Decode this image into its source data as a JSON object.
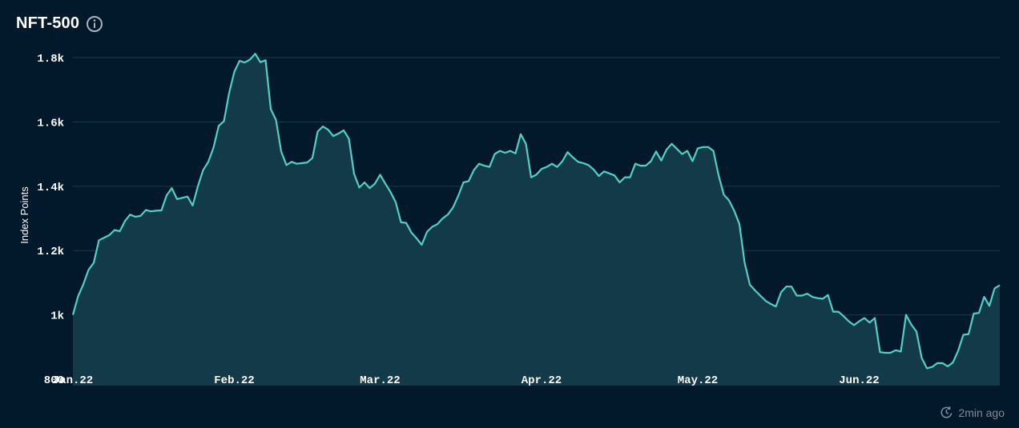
{
  "header": {
    "title": "NFT-500",
    "info_icon": "info-icon"
  },
  "footer": {
    "updated": "2min ago",
    "refresh_icon": "clock-refresh-icon"
  },
  "colors": {
    "background": "#02192b",
    "line": "#4fd1c5",
    "area": "#143c4a",
    "grid": "#1a3a4d",
    "text": "#ffffff"
  },
  "chart_data": {
    "type": "area",
    "title": "NFT-500",
    "ylabel": "Index Points",
    "xlabel": "",
    "ylim": [
      780,
      1830
    ],
    "y_ticks": [
      800,
      1000,
      1200,
      1400,
      1600,
      1800
    ],
    "y_tick_labels": [
      "800",
      "1k",
      "1.2k",
      "1.4k",
      "1.6k",
      "1.8k"
    ],
    "x_tick_labels": [
      "Jan.22",
      "Feb.22",
      "Mar.22",
      "Apr.22",
      "May.22",
      "Jun.22"
    ],
    "x_tick_days": [
      0,
      31,
      59,
      90,
      120,
      151
    ],
    "x_range_days": [
      0,
      178
    ],
    "grid": true,
    "series": [
      {
        "x": [
          0,
          1,
          2,
          3,
          4,
          5,
          6,
          7,
          8,
          9,
          10,
          11,
          12,
          13,
          14,
          15,
          16,
          17,
          18,
          19,
          20,
          21,
          22,
          23,
          24,
          25,
          26,
          27,
          28,
          29,
          30,
          31,
          32,
          33,
          34,
          35,
          36,
          37,
          38,
          39,
          40,
          41,
          42,
          43,
          44,
          45,
          46,
          47,
          48,
          49,
          50,
          51,
          52,
          53,
          54,
          55,
          56,
          57,
          58,
          59,
          60,
          61,
          62,
          63,
          64,
          65,
          66,
          67,
          68,
          69,
          70,
          71,
          72,
          73,
          74,
          75,
          76,
          77,
          78,
          79,
          80,
          81,
          82,
          83,
          84,
          85,
          86,
          87,
          88,
          89,
          90,
          91,
          92,
          93,
          94,
          95,
          96,
          97,
          98,
          99,
          100,
          101,
          102,
          103,
          104,
          105,
          106,
          107,
          108,
          109,
          110,
          111,
          112,
          113,
          114,
          115,
          116,
          117,
          118,
          119,
          120,
          121,
          122,
          123,
          124,
          125,
          126,
          127,
          128,
          129,
          130,
          131,
          132,
          133,
          134,
          135,
          136,
          137,
          138,
          139,
          140,
          141,
          142,
          143,
          144,
          145,
          146,
          147,
          148,
          149,
          150,
          151,
          152,
          153,
          154,
          155,
          156,
          157,
          158,
          159,
          160,
          161,
          162,
          163,
          164,
          165,
          166,
          167,
          168,
          169,
          170,
          171,
          172,
          173,
          174,
          175,
          176,
          177,
          178
        ],
        "values": [
          1000,
          1058,
          1095,
          1140,
          1162,
          1232,
          1240,
          1248,
          1264,
          1260,
          1292,
          1312,
          1305,
          1308,
          1326,
          1322,
          1324,
          1325,
          1372,
          1394,
          1360,
          1364,
          1368,
          1340,
          1400,
          1450,
          1476,
          1520,
          1588,
          1602,
          1690,
          1756,
          1790,
          1785,
          1794,
          1812,
          1786,
          1792,
          1640,
          1606,
          1508,
          1466,
          1476,
          1470,
          1472,
          1474,
          1488,
          1570,
          1586,
          1576,
          1556,
          1564,
          1574,
          1548,
          1438,
          1396,
          1412,
          1394,
          1408,
          1436,
          1408,
          1382,
          1350,
          1288,
          1286,
          1256,
          1238,
          1218,
          1258,
          1274,
          1282,
          1300,
          1312,
          1334,
          1370,
          1412,
          1416,
          1450,
          1470,
          1464,
          1460,
          1500,
          1510,
          1504,
          1510,
          1502,
          1562,
          1532,
          1428,
          1436,
          1454,
          1460,
          1470,
          1460,
          1478,
          1506,
          1490,
          1476,
          1472,
          1466,
          1452,
          1432,
          1446,
          1440,
          1434,
          1412,
          1428,
          1428,
          1470,
          1464,
          1464,
          1478,
          1508,
          1480,
          1514,
          1532,
          1516,
          1500,
          1510,
          1478,
          1518,
          1522,
          1522,
          1510,
          1434,
          1374,
          1356,
          1324,
          1282,
          1162,
          1094,
          1076,
          1060,
          1044,
          1034,
          1026,
          1070,
          1088,
          1088,
          1060,
          1060,
          1066,
          1056,
          1052,
          1050,
          1062,
          1010,
          1010,
          996,
          980,
          968,
          980,
          990,
          976,
          990,
          884,
          882,
          882,
          890,
          886,
          1000,
          970,
          948,
          866,
          834,
          838,
          850,
          850,
          840,
          852,
          888,
          938,
          940,
          1004,
          1006,
          1056,
          1028,
          1082,
          1092
        ]
      }
    ]
  }
}
